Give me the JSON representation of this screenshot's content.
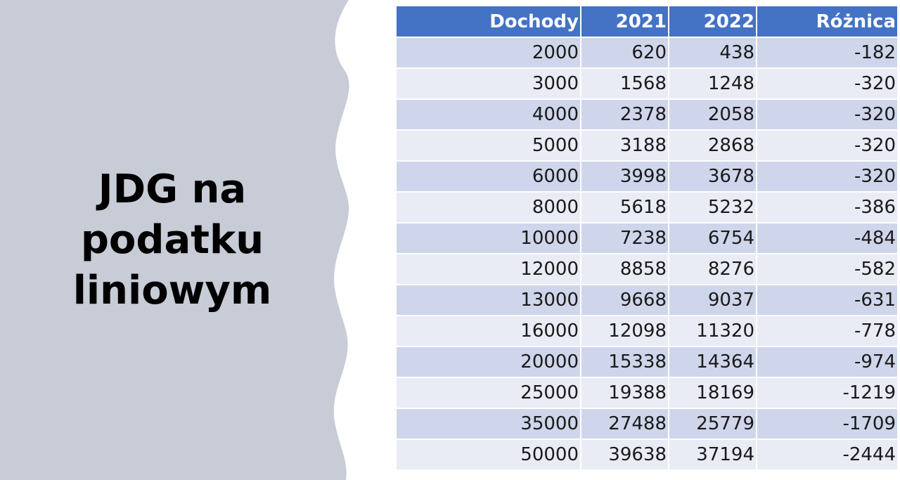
{
  "slide": {
    "title": "JDG na\npodatku\nliniowym"
  },
  "colors": {
    "side_panel": "#c7ccd6",
    "header_bg": "#4472c4",
    "row_odd": "#cfd5ea",
    "row_even": "#e9ebf5"
  },
  "table": {
    "headers": [
      "Dochody",
      "2021",
      "2022",
      "Różnica"
    ],
    "rows": [
      [
        "2000",
        "620",
        "438",
        "-182"
      ],
      [
        "3000",
        "1568",
        "1248",
        "-320"
      ],
      [
        "4000",
        "2378",
        "2058",
        "-320"
      ],
      [
        "5000",
        "3188",
        "2868",
        "-320"
      ],
      [
        "6000",
        "3998",
        "3678",
        "-320"
      ],
      [
        "8000",
        "5618",
        "5232",
        "-386"
      ],
      [
        "10000",
        "7238",
        "6754",
        "-484"
      ],
      [
        "12000",
        "8858",
        "8276",
        "-582"
      ],
      [
        "13000",
        "9668",
        "9037",
        "-631"
      ],
      [
        "16000",
        "12098",
        "11320",
        "-778"
      ],
      [
        "20000",
        "15338",
        "14364",
        "-974"
      ],
      [
        "25000",
        "19388",
        "18169",
        "-1219"
      ],
      [
        "35000",
        "27488",
        "25779",
        "-1709"
      ],
      [
        "50000",
        "39638",
        "37194",
        "-2444"
      ]
    ]
  }
}
